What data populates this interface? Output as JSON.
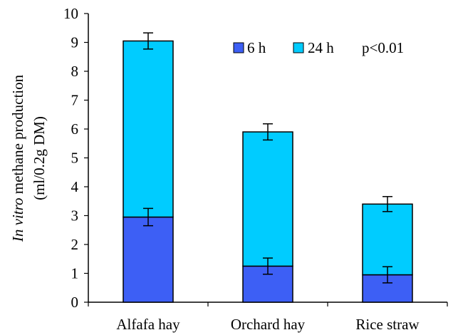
{
  "chart_data": {
    "type": "bar",
    "stacked": true,
    "categories": [
      "Alfafa hay",
      "Orchard hay",
      "Rice straw"
    ],
    "series": [
      {
        "name": "6 h",
        "values": [
          2.95,
          1.25,
          0.95
        ],
        "errors": [
          0.3,
          0.28,
          0.28
        ],
        "color": "#3D5FF5"
      },
      {
        "name": "24 h",
        "values": [
          6.1,
          4.65,
          2.45
        ],
        "errors": [
          0.28,
          0.28,
          0.26
        ],
        "color": "#00CCFF"
      }
    ],
    "totals": [
      9.05,
      5.9,
      3.4
    ],
    "ylim": [
      0,
      10
    ],
    "yticks": [
      "0",
      "1",
      "2",
      "3",
      "4",
      "5",
      "6",
      "7",
      "8",
      "9",
      "10"
    ],
    "ylabel_line1_italic": "In vitro",
    "ylabel_line1_rest": " methane production",
    "ylabel_line2": "(ml/0.2g DM)",
    "annotation": "p<0.01",
    "grid": false,
    "legend_position": "top-right"
  }
}
